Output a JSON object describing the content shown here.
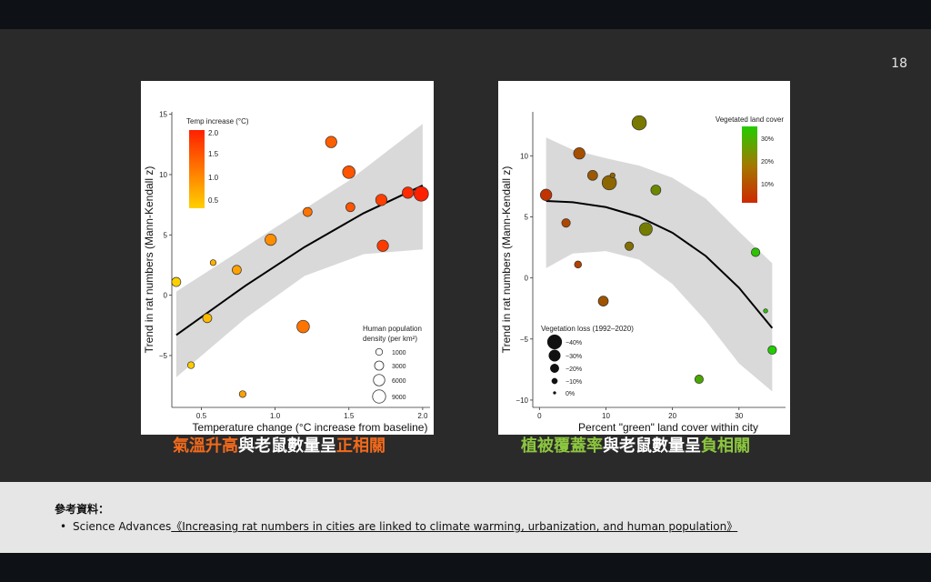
{
  "slide": {
    "page_number": "18",
    "caption_left": [
      {
        "text": "氣溫升高",
        "color": "#f26a1b"
      },
      {
        "text": "與老鼠數量呈",
        "color": "#ffffff"
      },
      {
        "text": "正相關",
        "color": "#f26a1b"
      }
    ],
    "caption_right": [
      {
        "text": "植被覆蓋率",
        "color": "#8cc63f"
      },
      {
        "text": "與老鼠數量呈",
        "color": "#ffffff"
      },
      {
        "text": "負相關",
        "color": "#8cc63f"
      }
    ]
  },
  "references": {
    "title": "參考資料：",
    "bullet": "•",
    "source": "Science Advances",
    "link_text": "《Increasing rat numbers in cities are linked to climate warming, urbanization, and human population》"
  },
  "chart_data": [
    {
      "type": "scatter",
      "xlabel": "Temperature change (°C increase from baseline)",
      "ylabel": "Trend in rat numbers (Mann-Kendall z)",
      "xlim": [
        0.3,
        2.05
      ],
      "ylim": [
        -9.3,
        15.2
      ],
      "xticks": [
        0.5,
        1.0,
        1.5,
        2.0
      ],
      "xtick_labels": [
        "0.5",
        "1.0",
        "1.5",
        "2.0"
      ],
      "yticks": [
        -5,
        0,
        5,
        10,
        15
      ],
      "ytick_labels": [
        "−5",
        "0",
        "5",
        "10",
        "15"
      ],
      "grid": false,
      "color_legend": {
        "title": "Temp increase (°C)",
        "ticks": [
          "2.0",
          "1.5",
          "1.0",
          "0.5"
        ],
        "colors": [
          "#ff2000",
          "#ffd000"
        ],
        "placement": "top-left"
      },
      "size_legend": {
        "title_line1": "Human population",
        "title_line2": "density (per km²)",
        "labels": [
          "1000",
          "3000",
          "6000",
          "9000"
        ],
        "placement": "bottom-right"
      },
      "trend": {
        "x": [
          0.33,
          0.8,
          1.2,
          1.6,
          2.0
        ],
        "y": [
          -3.3,
          0.8,
          4.0,
          6.8,
          9.1
        ]
      },
      "band_upper": {
        "x": [
          0.33,
          0.7,
          1.0,
          1.5,
          2.0
        ],
        "y": [
          0.3,
          3.2,
          5.6,
          9.5,
          14.2
        ]
      },
      "band_lower": {
        "x": [
          0.33,
          0.8,
          1.2,
          1.6,
          2.0
        ],
        "y": [
          -6.8,
          -1.9,
          1.6,
          3.4,
          3.8
        ]
      },
      "points": [
        {
          "x": 0.33,
          "y": 1.1,
          "size": 3000,
          "temp": 0.3
        },
        {
          "x": 0.43,
          "y": -5.8,
          "size": 1000,
          "temp": 0.35
        },
        {
          "x": 0.54,
          "y": -1.9,
          "size": 3000,
          "temp": 0.5
        },
        {
          "x": 0.58,
          "y": 2.7,
          "size": 500,
          "temp": 0.6
        },
        {
          "x": 0.74,
          "y": 2.1,
          "size": 3000,
          "temp": 0.75
        },
        {
          "x": 0.78,
          "y": -8.2,
          "size": 1000,
          "temp": 0.75
        },
        {
          "x": 0.97,
          "y": 4.6,
          "size": 6000,
          "temp": 0.95
        },
        {
          "x": 1.19,
          "y": -2.6,
          "size": 8000,
          "temp": 1.2
        },
        {
          "x": 1.22,
          "y": 6.9,
          "size": 3000,
          "temp": 1.2
        },
        {
          "x": 1.38,
          "y": 12.7,
          "size": 6000,
          "temp": 1.4
        },
        {
          "x": 1.5,
          "y": 10.2,
          "size": 8000,
          "temp": 1.5
        },
        {
          "x": 1.51,
          "y": 7.3,
          "size": 3000,
          "temp": 1.5
        },
        {
          "x": 1.72,
          "y": 7.9,
          "size": 6000,
          "temp": 1.7
        },
        {
          "x": 1.73,
          "y": 4.1,
          "size": 6000,
          "temp": 1.75
        },
        {
          "x": 1.9,
          "y": 8.5,
          "size": 6000,
          "temp": 1.9
        },
        {
          "x": 1.99,
          "y": 8.4,
          "size": 12000,
          "temp": 2.0
        }
      ]
    },
    {
      "type": "scatter",
      "xlabel": "Percent \"green\" land cover within city",
      "ylabel": "Trend in rat numbers (Mann-Kendall z)",
      "xlim": [
        -1,
        37
      ],
      "ylim": [
        -10.6,
        13.6
      ],
      "xticks": [
        0,
        10,
        20,
        30
      ],
      "xtick_labels": [
        "0",
        "10",
        "20",
        "30"
      ],
      "yticks": [
        -10,
        -5,
        0,
        5,
        10
      ],
      "ytick_labels": [
        "−10",
        "−5",
        "0",
        "5",
        "10"
      ],
      "grid": false,
      "color_legend": {
        "title": "Vegetated land cover",
        "ticks": [
          "30%",
          "20%",
          "10%"
        ],
        "colors": [
          "#22cc00",
          "#cc2a00"
        ],
        "placement": "top-right"
      },
      "size_legend": {
        "title": "Vegetation loss (1992–2020)",
        "labels": [
          "−40%",
          "−30%",
          "−20%",
          "−10%",
          "0%"
        ],
        "placement": "bottom-left"
      },
      "trend": {
        "x": [
          1,
          5,
          10,
          15,
          20,
          25,
          30,
          35
        ],
        "y": [
          6.3,
          6.2,
          5.8,
          5.0,
          3.7,
          1.8,
          -0.8,
          -4.1
        ]
      },
      "band_upper": {
        "x": [
          1,
          5,
          10,
          15,
          20,
          25,
          30,
          35
        ],
        "y": [
          11.5,
          10.5,
          9.8,
          9.2,
          8.2,
          6.5,
          3.8,
          1.2
        ]
      },
      "band_lower": {
        "x": [
          1,
          5,
          10,
          15,
          20,
          25,
          30,
          35
        ],
        "y": [
          0.8,
          2.0,
          2.2,
          1.5,
          -0.5,
          -3.5,
          -7.0,
          -9.3
        ]
      },
      "points": [
        {
          "x": 1,
          "y": 6.8,
          "loss": 30,
          "veg": 2
        },
        {
          "x": 4,
          "y": 4.5,
          "loss": 20,
          "veg": 6
        },
        {
          "x": 5.8,
          "y": 1.1,
          "loss": 15,
          "veg": 5
        },
        {
          "x": 6,
          "y": 10.2,
          "loss": 30,
          "veg": 8
        },
        {
          "x": 8,
          "y": 8.4,
          "loss": 25,
          "veg": 10
        },
        {
          "x": 9.6,
          "y": -1.9,
          "loss": 25,
          "veg": 9
        },
        {
          "x": 10.5,
          "y": 7.8,
          "loss": 40,
          "veg": 13
        },
        {
          "x": 11,
          "y": 8.4,
          "loss": 8,
          "veg": 12
        },
        {
          "x": 13.5,
          "y": 2.6,
          "loss": 20,
          "veg": 15
        },
        {
          "x": 15,
          "y": 12.7,
          "loss": 40,
          "veg": 17
        },
        {
          "x": 16,
          "y": 4.0,
          "loss": 35,
          "veg": 18
        },
        {
          "x": 17.5,
          "y": 7.2,
          "loss": 25,
          "veg": 20
        },
        {
          "x": 24,
          "y": -8.3,
          "loss": 20,
          "veg": 27
        },
        {
          "x": 32.5,
          "y": 2.1,
          "loss": 20,
          "veg": 33
        },
        {
          "x": 34,
          "y": -2.7,
          "loss": 5,
          "veg": 33
        },
        {
          "x": 35,
          "y": -5.9,
          "loss": 20,
          "veg": 35
        }
      ]
    }
  ]
}
